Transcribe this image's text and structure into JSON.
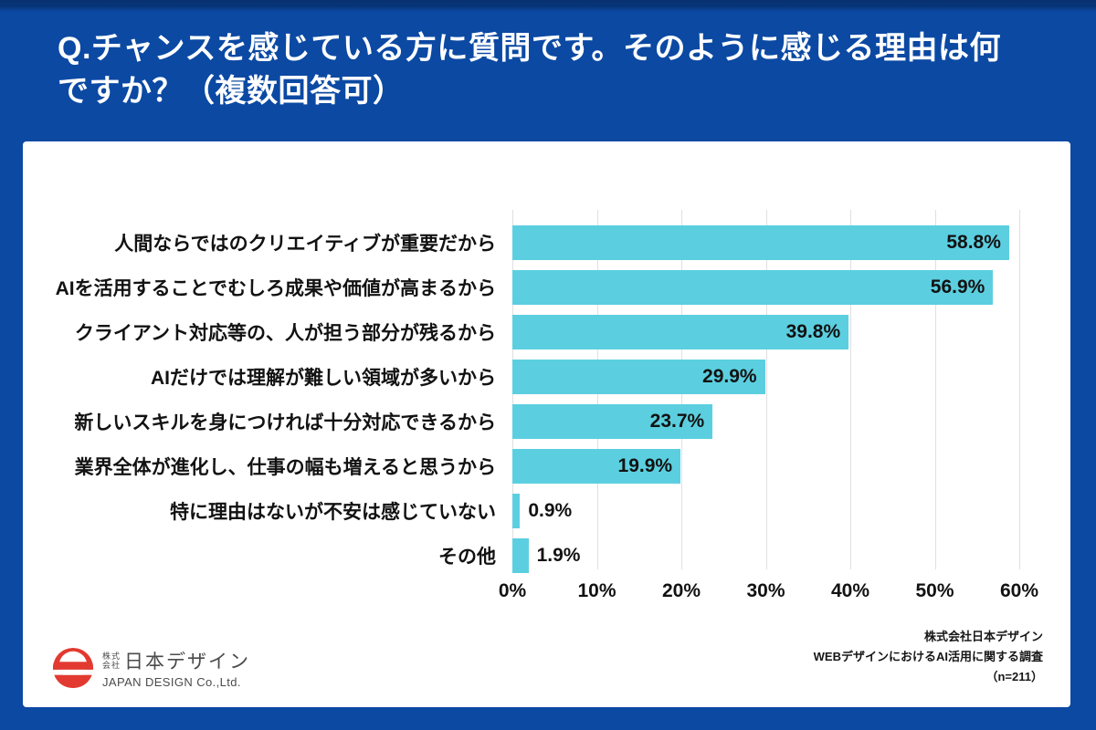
{
  "header": {
    "title_lines": [
      "Q.チャンスを感じている方に質問です。そのように感じる理由は何",
      "ですか？（複数回答可）"
    ]
  },
  "chart_data": {
    "type": "bar",
    "orientation": "horizontal",
    "title": "",
    "xlabel": "",
    "ylabel": "",
    "xlim": [
      0,
      60
    ],
    "grid": true,
    "categories": [
      "人間ならではのクリエイティブが重要だから",
      "AIを活用することでむしろ成果や価値が高まるから",
      "クライアント対応等の、人が担う部分が残るから",
      "AIだけでは理解が難しい領域が多いから",
      "新しいスキルを身につければ十分対応できるから",
      "業界全体が進化し、仕事の幅も増えると思うから",
      "特に理由はないが不安は感じていない",
      "その他"
    ],
    "values": [
      58.8,
      56.9,
      39.8,
      29.9,
      23.7,
      19.9,
      0.9,
      1.9
    ],
    "value_labels": [
      "58.8%",
      "56.9%",
      "39.8%",
      "29.9%",
      "23.7%",
      "19.9%",
      "0.9%",
      "1.9%"
    ],
    "x_ticks": [
      "0%",
      "10%",
      "20%",
      "30%",
      "40%",
      "50%",
      "60%"
    ]
  },
  "footer": {
    "logo": {
      "prefix_lines": [
        "株式",
        "会社"
      ],
      "name_jp": "日本デザイン",
      "name_en": "JAPAN DESIGN Co.,Ltd."
    },
    "source_lines": [
      "株式会社日本デザイン",
      "WEBデザインにおけるAI活用に関する調査",
      "（n=211）"
    ]
  },
  "colors": {
    "background_blue": "#0b49a3",
    "bar_cyan": "#5bcfe0",
    "gridline_gray": "#e0e0e0",
    "text_black": "#121212",
    "title_white": "#ffffff",
    "logo_red": "#e23a30",
    "logo_gray": "#4b4b4d"
  }
}
